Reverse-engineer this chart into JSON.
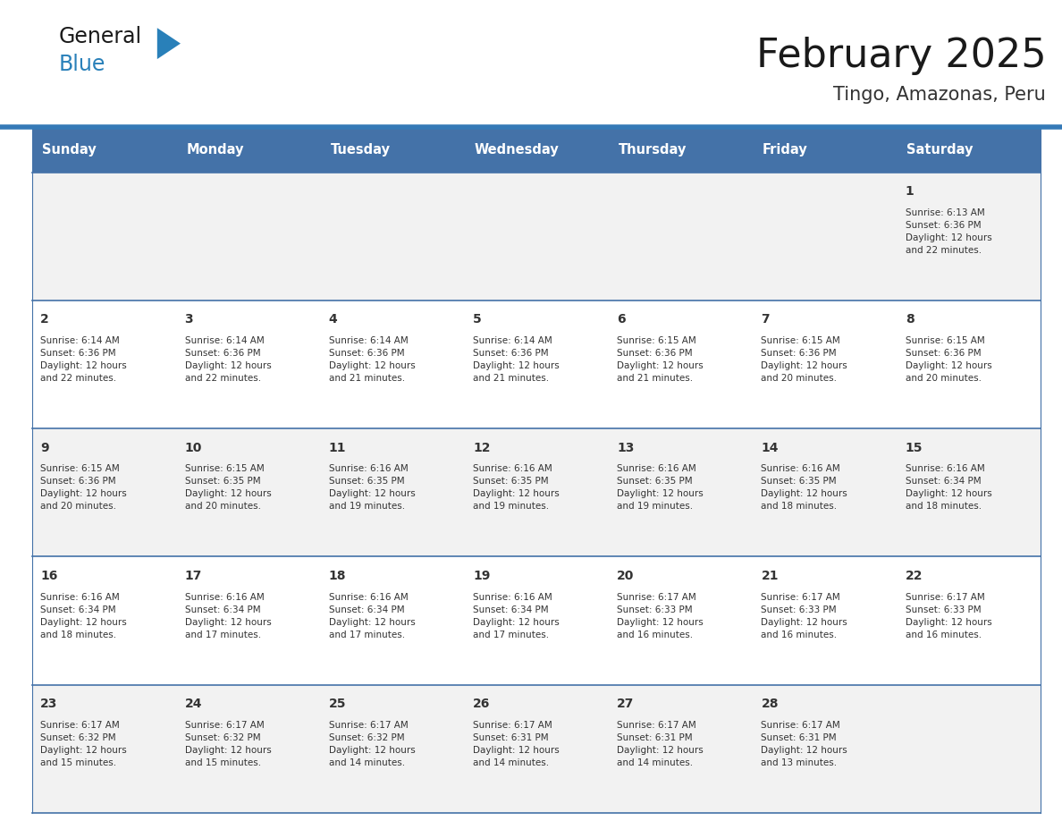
{
  "title": "February 2025",
  "subtitle": "Tingo, Amazonas, Peru",
  "header_bg": "#4472A8",
  "header_text_color": "#FFFFFF",
  "day_names": [
    "Sunday",
    "Monday",
    "Tuesday",
    "Wednesday",
    "Thursday",
    "Friday",
    "Saturday"
  ],
  "row_bg_odd": "#F2F2F2",
  "row_bg_even": "#FFFFFF",
  "cell_border_color": "#4472A8",
  "day_num_color": "#333333",
  "info_text_color": "#333333",
  "title_color": "#1a1a1a",
  "subtitle_color": "#333333",
  "general_color": "#1a1a1a",
  "blue_color": "#2980B9",
  "weeks": [
    {
      "days": [
        {
          "date": null,
          "info": null
        },
        {
          "date": null,
          "info": null
        },
        {
          "date": null,
          "info": null
        },
        {
          "date": null,
          "info": null
        },
        {
          "date": null,
          "info": null
        },
        {
          "date": null,
          "info": null
        },
        {
          "date": 1,
          "info": "Sunrise: 6:13 AM\nSunset: 6:36 PM\nDaylight: 12 hours\nand 22 minutes."
        }
      ]
    },
    {
      "days": [
        {
          "date": 2,
          "info": "Sunrise: 6:14 AM\nSunset: 6:36 PM\nDaylight: 12 hours\nand 22 minutes."
        },
        {
          "date": 3,
          "info": "Sunrise: 6:14 AM\nSunset: 6:36 PM\nDaylight: 12 hours\nand 22 minutes."
        },
        {
          "date": 4,
          "info": "Sunrise: 6:14 AM\nSunset: 6:36 PM\nDaylight: 12 hours\nand 21 minutes."
        },
        {
          "date": 5,
          "info": "Sunrise: 6:14 AM\nSunset: 6:36 PM\nDaylight: 12 hours\nand 21 minutes."
        },
        {
          "date": 6,
          "info": "Sunrise: 6:15 AM\nSunset: 6:36 PM\nDaylight: 12 hours\nand 21 minutes."
        },
        {
          "date": 7,
          "info": "Sunrise: 6:15 AM\nSunset: 6:36 PM\nDaylight: 12 hours\nand 20 minutes."
        },
        {
          "date": 8,
          "info": "Sunrise: 6:15 AM\nSunset: 6:36 PM\nDaylight: 12 hours\nand 20 minutes."
        }
      ]
    },
    {
      "days": [
        {
          "date": 9,
          "info": "Sunrise: 6:15 AM\nSunset: 6:36 PM\nDaylight: 12 hours\nand 20 minutes."
        },
        {
          "date": 10,
          "info": "Sunrise: 6:15 AM\nSunset: 6:35 PM\nDaylight: 12 hours\nand 20 minutes."
        },
        {
          "date": 11,
          "info": "Sunrise: 6:16 AM\nSunset: 6:35 PM\nDaylight: 12 hours\nand 19 minutes."
        },
        {
          "date": 12,
          "info": "Sunrise: 6:16 AM\nSunset: 6:35 PM\nDaylight: 12 hours\nand 19 minutes."
        },
        {
          "date": 13,
          "info": "Sunrise: 6:16 AM\nSunset: 6:35 PM\nDaylight: 12 hours\nand 19 minutes."
        },
        {
          "date": 14,
          "info": "Sunrise: 6:16 AM\nSunset: 6:35 PM\nDaylight: 12 hours\nand 18 minutes."
        },
        {
          "date": 15,
          "info": "Sunrise: 6:16 AM\nSunset: 6:34 PM\nDaylight: 12 hours\nand 18 minutes."
        }
      ]
    },
    {
      "days": [
        {
          "date": 16,
          "info": "Sunrise: 6:16 AM\nSunset: 6:34 PM\nDaylight: 12 hours\nand 18 minutes."
        },
        {
          "date": 17,
          "info": "Sunrise: 6:16 AM\nSunset: 6:34 PM\nDaylight: 12 hours\nand 17 minutes."
        },
        {
          "date": 18,
          "info": "Sunrise: 6:16 AM\nSunset: 6:34 PM\nDaylight: 12 hours\nand 17 minutes."
        },
        {
          "date": 19,
          "info": "Sunrise: 6:16 AM\nSunset: 6:34 PM\nDaylight: 12 hours\nand 17 minutes."
        },
        {
          "date": 20,
          "info": "Sunrise: 6:17 AM\nSunset: 6:33 PM\nDaylight: 12 hours\nand 16 minutes."
        },
        {
          "date": 21,
          "info": "Sunrise: 6:17 AM\nSunset: 6:33 PM\nDaylight: 12 hours\nand 16 minutes."
        },
        {
          "date": 22,
          "info": "Sunrise: 6:17 AM\nSunset: 6:33 PM\nDaylight: 12 hours\nand 16 minutes."
        }
      ]
    },
    {
      "days": [
        {
          "date": 23,
          "info": "Sunrise: 6:17 AM\nSunset: 6:32 PM\nDaylight: 12 hours\nand 15 minutes."
        },
        {
          "date": 24,
          "info": "Sunrise: 6:17 AM\nSunset: 6:32 PM\nDaylight: 12 hours\nand 15 minutes."
        },
        {
          "date": 25,
          "info": "Sunrise: 6:17 AM\nSunset: 6:32 PM\nDaylight: 12 hours\nand 14 minutes."
        },
        {
          "date": 26,
          "info": "Sunrise: 6:17 AM\nSunset: 6:31 PM\nDaylight: 12 hours\nand 14 minutes."
        },
        {
          "date": 27,
          "info": "Sunrise: 6:17 AM\nSunset: 6:31 PM\nDaylight: 12 hours\nand 14 minutes."
        },
        {
          "date": 28,
          "info": "Sunrise: 6:17 AM\nSunset: 6:31 PM\nDaylight: 12 hours\nand 13 minutes."
        },
        {
          "date": null,
          "info": null
        }
      ]
    }
  ]
}
